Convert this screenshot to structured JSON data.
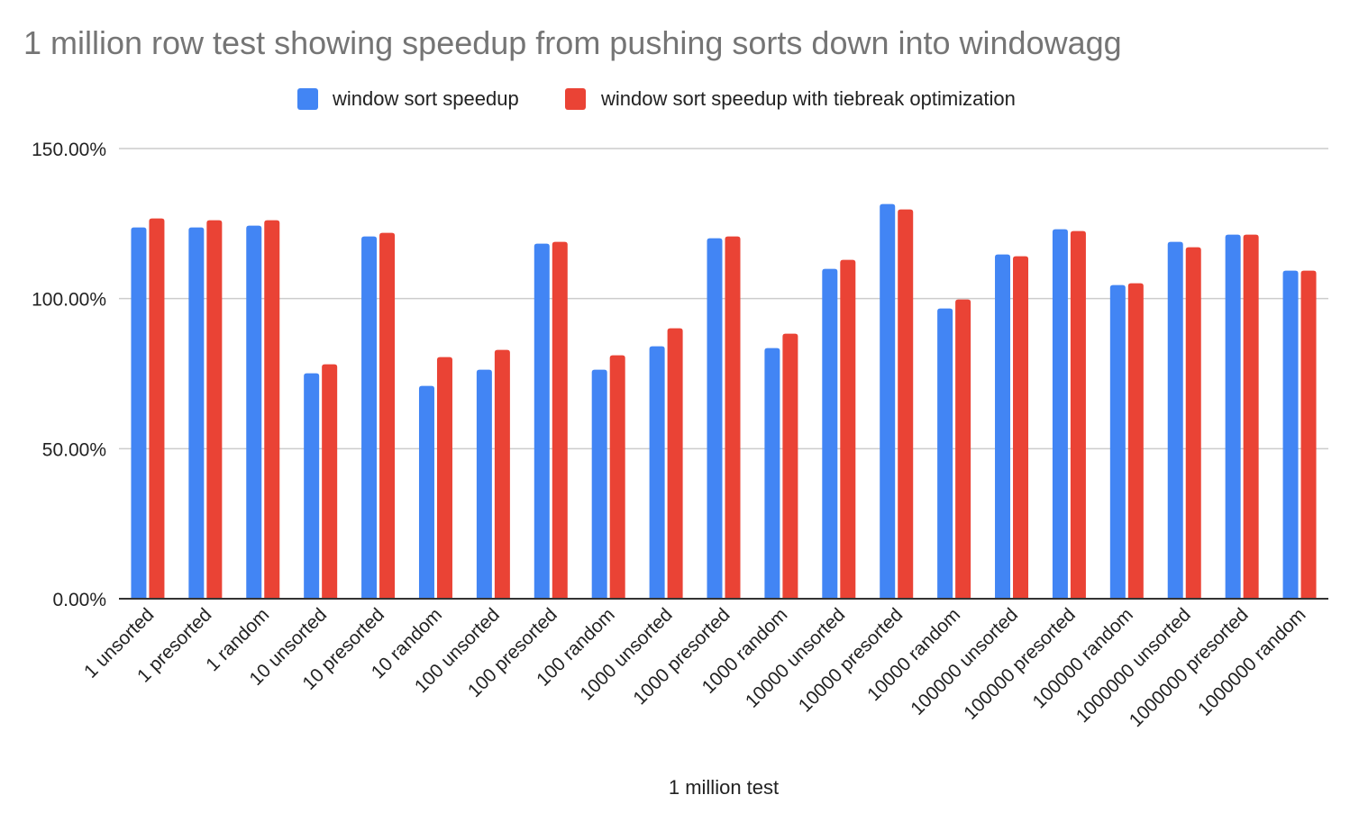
{
  "chart_data": {
    "type": "bar",
    "title": "1 million row test showing speedup from pushing sorts down into windowagg",
    "xlabel": "1 million test",
    "ylabel": "",
    "ylim": [
      0,
      150
    ],
    "yticks": [
      0,
      50,
      100,
      150
    ],
    "ytick_labels": [
      "0.00%",
      "50.00%",
      "100.00%",
      "150.00%"
    ],
    "grid": true,
    "legend_position": "top-center",
    "categories": [
      "1 unsorted",
      "1 presorted",
      "1 random",
      "10 unsorted",
      "10 presorted",
      "10 random",
      "100 unsorted",
      "100 presorted",
      "100 random",
      "1000 unsorted",
      "1000 presorted",
      "1000 random",
      "10000 unsorted",
      "10000 presorted",
      "10000 random",
      "100000 unsorted",
      "100000 presorted",
      "100000 random",
      "1000000 unsorted",
      "1000000 presorted",
      "1000000 random"
    ],
    "series": [
      {
        "name": "window sort speedup",
        "color": "#4285f4",
        "values": [
          123.7,
          123.7,
          124.3,
          75.1,
          120.7,
          70.9,
          76.3,
          118.3,
          76.3,
          84.1,
          120.1,
          83.5,
          109.9,
          131.5,
          96.7,
          114.7,
          123.1,
          104.5,
          118.9,
          121.3,
          109.3
        ]
      },
      {
        "name": "window sort speedup with tiebreak optimization",
        "color": "#ea4335",
        "values": [
          126.7,
          126.1,
          126.1,
          78.1,
          121.9,
          80.5,
          82.9,
          118.9,
          81.1,
          90.1,
          120.7,
          88.3,
          112.9,
          129.7,
          99.7,
          114.1,
          122.5,
          105.1,
          117.1,
          121.3,
          109.3
        ]
      }
    ]
  }
}
